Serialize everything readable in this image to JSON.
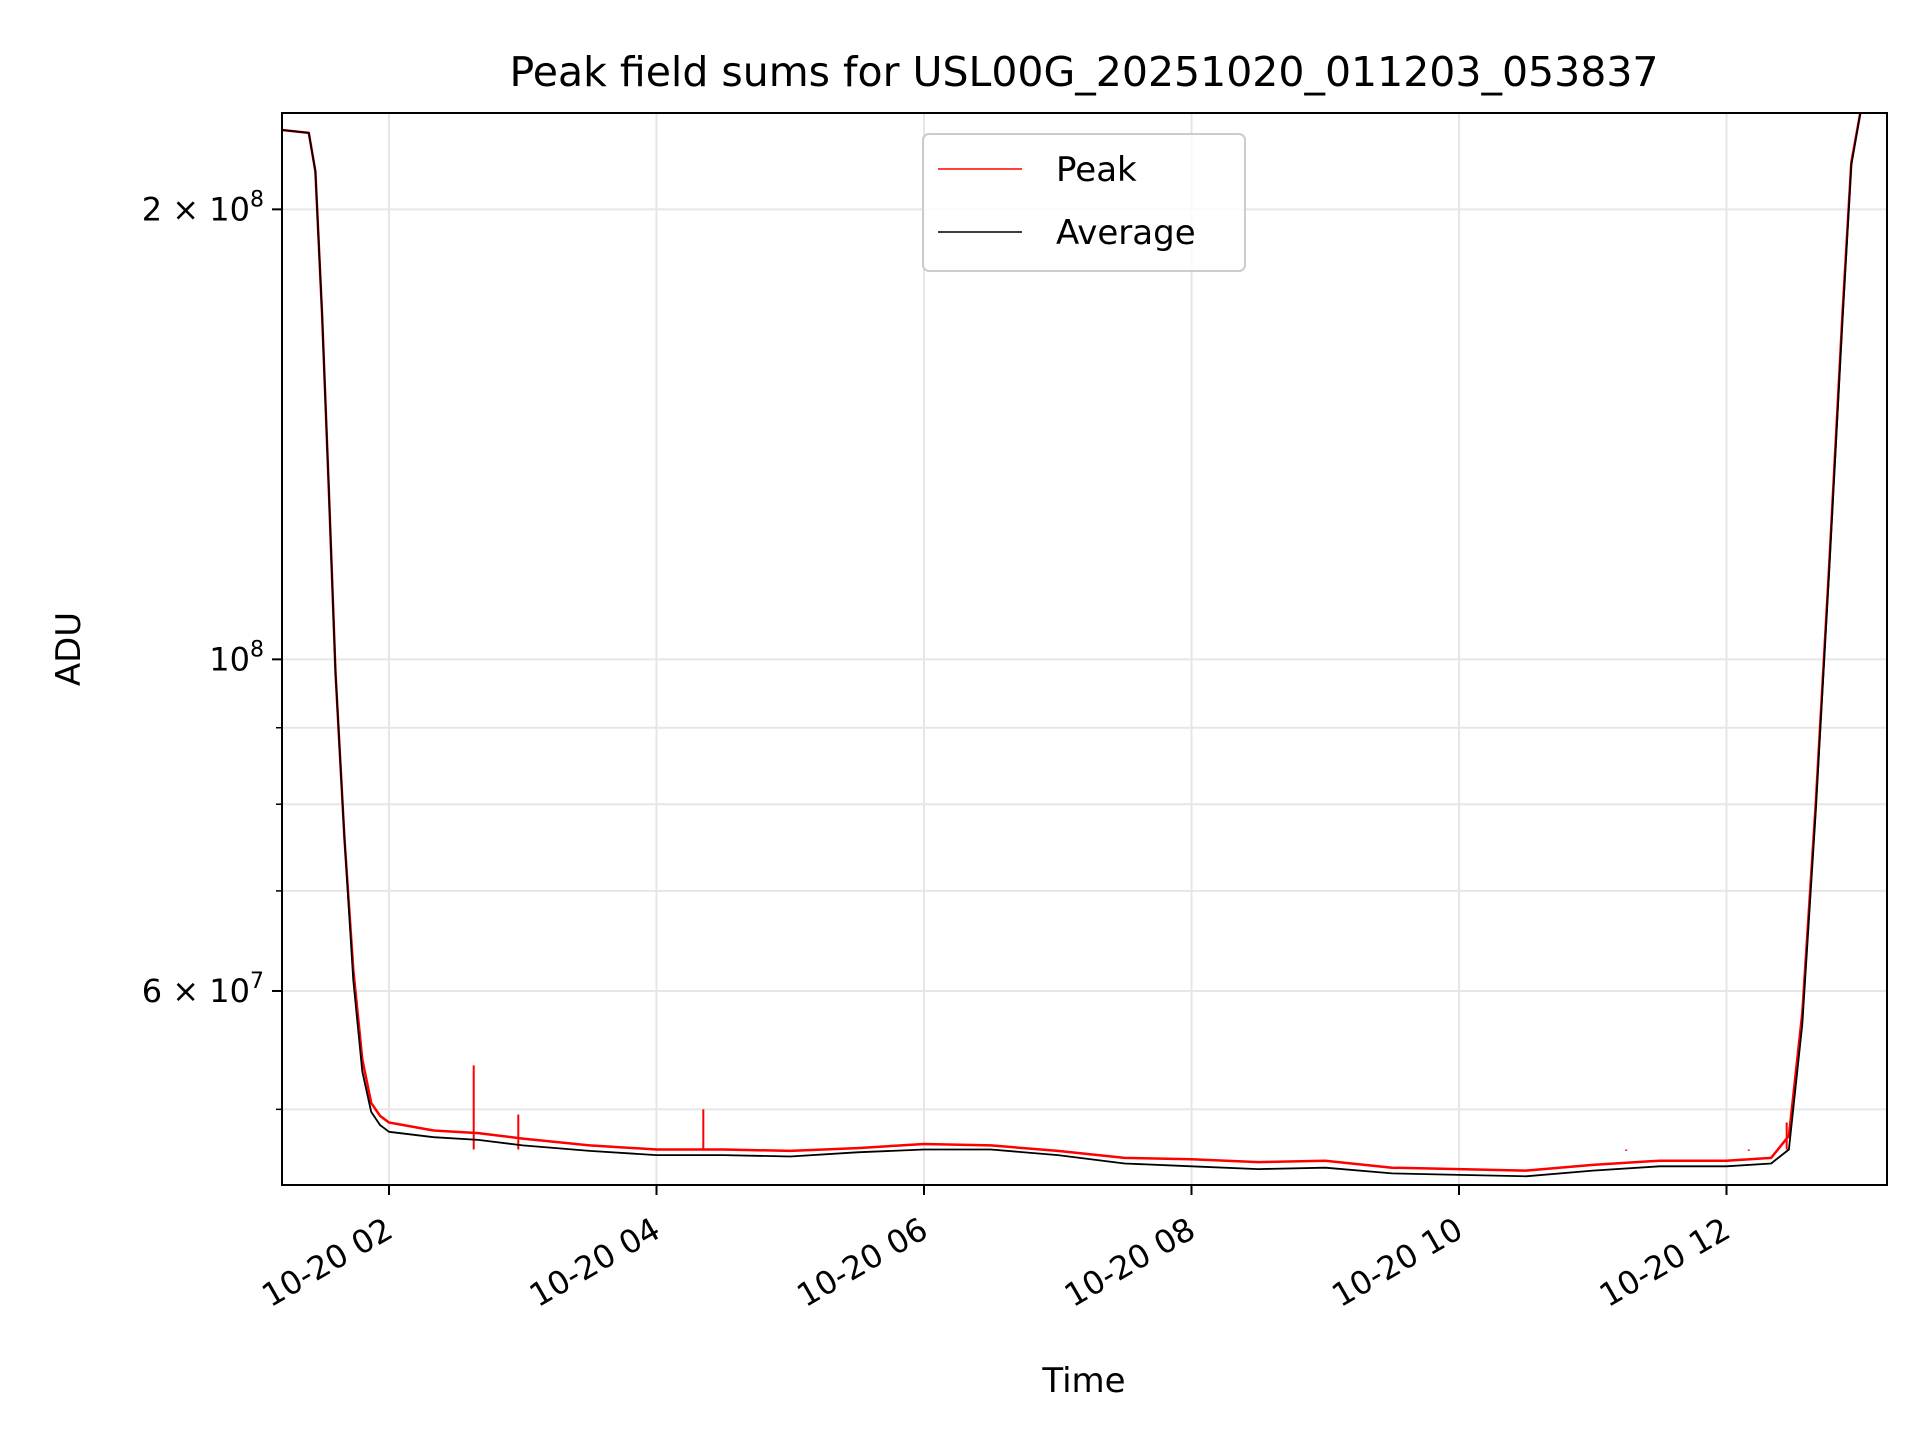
{
  "chart_data": {
    "type": "line",
    "title": "Peak field sums for USL00G_20251020_011203_053837",
    "xlabel": "Time",
    "ylabel": "ADU",
    "x_scale": "time",
    "y_scale": "log",
    "xlim": [
      "2025-10-20 01:12",
      "2025-10-20 13:12"
    ],
    "ylim": [
      44500000,
      232000000
    ],
    "x_ticks": [
      {
        "value": "2025-10-20 02:00",
        "label": "10-20 02"
      },
      {
        "value": "2025-10-20 04:00",
        "label": "10-20 04"
      },
      {
        "value": "2025-10-20 06:00",
        "label": "10-20 06"
      },
      {
        "value": "2025-10-20 08:00",
        "label": "10-20 08"
      },
      {
        "value": "2025-10-20 10:00",
        "label": "10-20 10"
      },
      {
        "value": "2025-10-20 12:00",
        "label": "10-20 12"
      }
    ],
    "y_ticks": [
      {
        "value": 60000000,
        "base": "6 × 10",
        "exp": "7"
      },
      {
        "value": 100000000,
        "base": "10",
        "exp": "8"
      },
      {
        "value": 200000000,
        "base": "2 × 10",
        "exp": "8"
      }
    ],
    "y_minor_ticks": [
      50000000,
      70000000,
      80000000,
      90000000
    ],
    "grid": true,
    "legend": {
      "placement": "top-center"
    },
    "series": [
      {
        "name": "Peak",
        "color": "#ff0000",
        "x": [
          "2025-10-20 01:12",
          "2025-10-20 01:24",
          "2025-10-20 01:27",
          "2025-10-20 01:30",
          "2025-10-20 01:33",
          "2025-10-20 01:36",
          "2025-10-20 01:40",
          "2025-10-20 01:44",
          "2025-10-20 01:48",
          "2025-10-20 01:52",
          "2025-10-20 01:56",
          "2025-10-20 02:00",
          "2025-10-20 02:20",
          "2025-10-20 02:40",
          "2025-10-20 03:00",
          "2025-10-20 03:30",
          "2025-10-20 04:00",
          "2025-10-20 04:30",
          "2025-10-20 05:00",
          "2025-10-20 05:30",
          "2025-10-20 06:00",
          "2025-10-20 06:30",
          "2025-10-20 07:00",
          "2025-10-20 07:30",
          "2025-10-20 08:00",
          "2025-10-20 08:30",
          "2025-10-20 09:00",
          "2025-10-20 09:30",
          "2025-10-20 10:00",
          "2025-10-20 10:30",
          "2025-10-20 11:00",
          "2025-10-20 11:30",
          "2025-10-20 12:00",
          "2025-10-20 12:20",
          "2025-10-20 12:28",
          "2025-10-20 12:34",
          "2025-10-20 12:40",
          "2025-10-20 12:46",
          "2025-10-20 12:52",
          "2025-10-20 12:56",
          "2025-10-20 13:00"
        ],
        "values": [
          226000000,
          225000000,
          212000000,
          170000000,
          130000000,
          98000000,
          76000000,
          62000000,
          54000000,
          50500000,
          49500000,
          49000000,
          48400000,
          48200000,
          47800000,
          47300000,
          47000000,
          47000000,
          46900000,
          47100000,
          47400000,
          47300000,
          46900000,
          46400000,
          46300000,
          46100000,
          46200000,
          45700000,
          45600000,
          45500000,
          45900000,
          46200000,
          46200000,
          46400000,
          48000000,
          58000000,
          80000000,
          115000000,
          170000000,
          215000000,
          232000000
        ],
        "spikes": [
          {
            "x": "2025-10-20 02:38",
            "value": 53500000
          },
          {
            "x": "2025-10-20 04:21",
            "value": 50000000
          },
          {
            "x": "2025-10-20 02:58",
            "value": 49600000
          },
          {
            "x": "2025-10-20 12:27",
            "value": 49000000
          },
          {
            "x": "2025-10-20 11:15",
            "value": 46900000
          },
          {
            "x": "2025-10-20 12:10",
            "value": 46900000
          }
        ]
      },
      {
        "name": "Average",
        "color": "#000000",
        "x": [
          "2025-10-20 01:12",
          "2025-10-20 01:24",
          "2025-10-20 01:27",
          "2025-10-20 01:30",
          "2025-10-20 01:33",
          "2025-10-20 01:36",
          "2025-10-20 01:40",
          "2025-10-20 01:44",
          "2025-10-20 01:48",
          "2025-10-20 01:52",
          "2025-10-20 01:56",
          "2025-10-20 02:00",
          "2025-10-20 02:20",
          "2025-10-20 02:40",
          "2025-10-20 03:00",
          "2025-10-20 03:30",
          "2025-10-20 04:00",
          "2025-10-20 04:30",
          "2025-10-20 05:00",
          "2025-10-20 05:30",
          "2025-10-20 06:00",
          "2025-10-20 06:30",
          "2025-10-20 07:00",
          "2025-10-20 07:30",
          "2025-10-20 08:00",
          "2025-10-20 08:30",
          "2025-10-20 09:00",
          "2025-10-20 09:30",
          "2025-10-20 10:00",
          "2025-10-20 10:30",
          "2025-10-20 11:00",
          "2025-10-20 11:30",
          "2025-10-20 12:00",
          "2025-10-20 12:20",
          "2025-10-20 12:28",
          "2025-10-20 12:34",
          "2025-10-20 12:40",
          "2025-10-20 12:46",
          "2025-10-20 12:52",
          "2025-10-20 12:56",
          "2025-10-20 13:00"
        ],
        "values": [
          226000000,
          225000000,
          212000000,
          170000000,
          130000000,
          98000000,
          76000000,
          61000000,
          53000000,
          49800000,
          48800000,
          48300000,
          47900000,
          47700000,
          47300000,
          46900000,
          46600000,
          46600000,
          46500000,
          46800000,
          47000000,
          47000000,
          46600000,
          46000000,
          45800000,
          45600000,
          45700000,
          45300000,
          45200000,
          45100000,
          45500000,
          45800000,
          45800000,
          46000000,
          47000000,
          57000000,
          79000000,
          114000000,
          168000000,
          214000000,
          232000000
        ]
      }
    ]
  }
}
